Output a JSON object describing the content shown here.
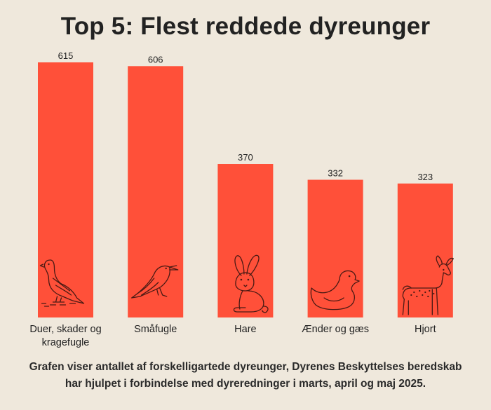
{
  "title": "Top 5: Flest reddede dyreunger",
  "caption_lines": [
    "Grafen viser antallet af forskelligartede dyreunger, Dyrenes Beskyttelses beredskab",
    "har hjulpet i forbindelse med dyreredninger i marts, april og maj 2025."
  ],
  "colors": {
    "bar": "#ff5039",
    "background": "#efe8dc",
    "icon_stroke": "#4a1a14"
  },
  "chart_data": {
    "type": "bar",
    "title": "Top 5: Flest reddede dyreunger",
    "categories": [
      [
        "Duer, skader og",
        "kragefugle"
      ],
      [
        "Småfugle"
      ],
      [
        "Hare"
      ],
      [
        "Ænder og gæs"
      ],
      [
        "Hjort"
      ]
    ],
    "values": [
      615,
      606,
      370,
      332,
      323
    ],
    "icons": [
      "pigeon-icon",
      "songbird-icon",
      "rabbit-icon",
      "duck-icon",
      "deer-icon"
    ],
    "ylim": [
      0,
      615
    ],
    "grid": false,
    "legend": "none"
  }
}
